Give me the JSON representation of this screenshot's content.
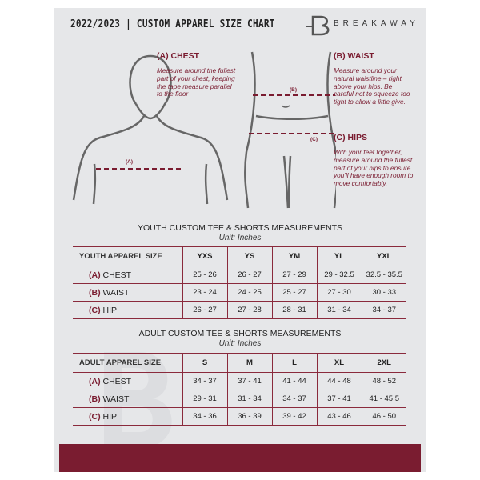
{
  "header": {
    "title": "2022/2023  |  CUSTOM APPAREL SIZE CHART",
    "brand": "BREAKAWAY"
  },
  "guide": {
    "chest": {
      "title": "(A) CHEST",
      "text": "Measure around the fullest part of your chest, keeping the tape measure parallel to the floor",
      "marker": "(A)"
    },
    "waist": {
      "title": "(B) WAIST",
      "text": "Measure around your natural waistline – right above your hips. Be careful not to squeeze too tight to allow a little give.",
      "marker": "(B)"
    },
    "hips": {
      "title": "(C) HIPS",
      "text": "With your feet together, measure around the fullest part of your hips to ensure you'll have enough room to move comfortably.",
      "marker": "(C)"
    }
  },
  "youth": {
    "title": "YOUTH CUSTOM TEE & SHORTS MEASUREMENTS",
    "unit": "Unit: Inches",
    "header": "YOUTH APPAREL SIZE",
    "sizes": [
      "YXS",
      "YS",
      "YM",
      "YL",
      "YXL"
    ],
    "rows": [
      {
        "code": "(A)",
        "name": "CHEST",
        "values": [
          "25 - 26",
          "26 - 27",
          "27 - 29",
          "29 - 32.5",
          "32.5 - 35.5"
        ]
      },
      {
        "code": "(B)",
        "name": "WAIST",
        "values": [
          "23 - 24",
          "24 - 25",
          "25 - 27",
          "27 - 30",
          "30 - 33"
        ]
      },
      {
        "code": "(C)",
        "name": "HIP",
        "values": [
          "26 - 27",
          "27 - 28",
          "28 - 31",
          "31 - 34",
          "34 - 37"
        ]
      }
    ]
  },
  "adult": {
    "title": "ADULT CUSTOM TEE & SHORTS MEASUREMENTS",
    "unit": "Unit: Inches",
    "header": "ADULT APPAREL SIZE",
    "sizes": [
      "S",
      "M",
      "L",
      "XL",
      "2XL"
    ],
    "rows": [
      {
        "code": "(A)",
        "name": "CHEST",
        "values": [
          "34 - 37",
          "37 - 41",
          "41 - 44",
          "44 - 48",
          "48 - 52"
        ]
      },
      {
        "code": "(B)",
        "name": "WAIST",
        "values": [
          "29 - 31",
          "31 - 34",
          "34 - 37",
          "37 - 41",
          "41 - 45.5"
        ]
      },
      {
        "code": "(C)",
        "name": "HIP",
        "values": [
          "34 - 36",
          "36 - 39",
          "39 - 42",
          "43 - 46",
          "46 - 50"
        ]
      }
    ]
  },
  "colors": {
    "accent": "#7a1c30",
    "panel": "#e6e7e9"
  }
}
